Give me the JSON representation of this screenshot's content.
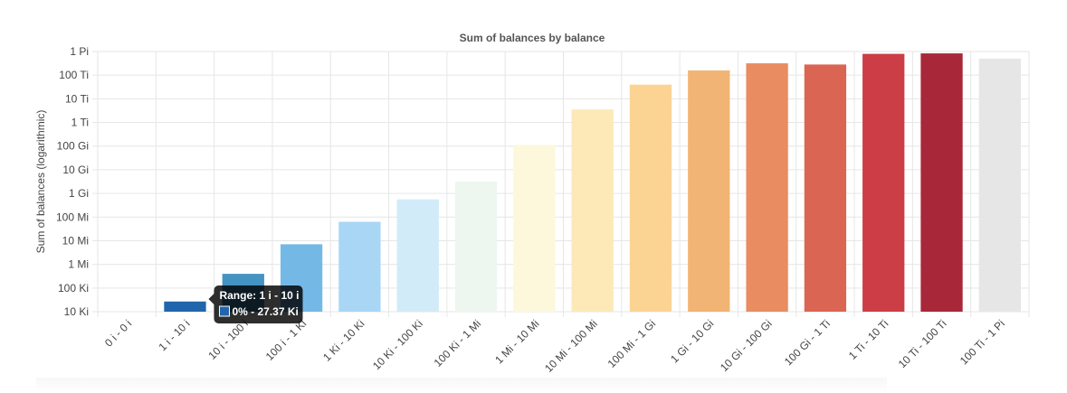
{
  "chart_data": {
    "type": "bar",
    "title": "Sum of balances by balance",
    "xlabel": "",
    "ylabel": "Sum of balances (logarithmic)",
    "y_scale": "log",
    "ylim_labels": [
      "10 Ki",
      "1 Pi"
    ],
    "y_ticks": [
      "10 Ki",
      "100 Ki",
      "1 Mi",
      "10 Mi",
      "100 Mi",
      "1 Gi",
      "10 Gi",
      "100 Gi",
      "1 Ti",
      "10 Ti",
      "100 Ti",
      "1 Pi"
    ],
    "categories": [
      "0 i - 0 i",
      "1 i - 10 i",
      "10 i - 100 i",
      "100 i - 1 Ki",
      "1 Ki - 10 Ki",
      "10 Ki - 100 Ki",
      "100 Ki - 1 Mi",
      "1 Mi - 10 Mi",
      "10 Mi - 100 Mi",
      "100 Mi - 1 Gi",
      "1 Gi - 10 Gi",
      "10 Gi - 100 Gi",
      "100 Gi - 1 Ti",
      "1 Ti - 10 Ti",
      "10 Ti - 100 Ti",
      "100 Ti - 1 Pi"
    ],
    "values_log10_binary_units": [
      null,
      4.43,
      5.6,
      6.85,
      7.8,
      8.75,
      9.5,
      11.05,
      12.55,
      13.6,
      14.2,
      14.5,
      14.45,
      14.9,
      14.92,
      14.7
    ],
    "colors": [
      "#2166ac",
      "#2166ac",
      "#4393c3",
      "#74b9e6",
      "#a9d6f5",
      "#d1ebf8",
      "#edf6ef",
      "#fdf8dc",
      "#fde9b7",
      "#fbd493",
      "#f2b474",
      "#e98c61",
      "#db6553",
      "#cc3e46",
      "#a8283a",
      "#e6e6e6"
    ],
    "grid": true,
    "legend": "none",
    "tooltip": {
      "title": "Range: 1 i - 10 i",
      "body": "0% - 27.37 Ki",
      "category_index": 1
    }
  }
}
